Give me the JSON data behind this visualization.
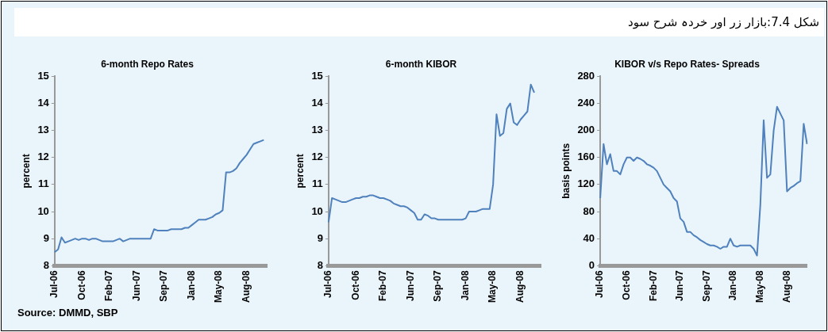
{
  "chart_data": [
    {
      "type": "line",
      "title": "6-month Repo Rates",
      "ylabel": "percent",
      "annotations": [
        "شکل 7.4:بازار زر اور خردہ شرح سود",
        "Source: DMMD, SBP"
      ],
      "categories": [
        "Jul-06",
        null,
        null,
        null,
        null,
        null,
        null,
        null,
        "Oct-06",
        null,
        null,
        null,
        null,
        null,
        null,
        null,
        "Feb-07",
        null,
        null,
        null,
        null,
        null,
        null,
        null,
        "Jun-07",
        null,
        null,
        null,
        null,
        null,
        null,
        null,
        "Sep-07",
        null,
        null,
        null,
        null,
        null,
        null,
        null,
        "Jan-08",
        null,
        null,
        null,
        null,
        null,
        null,
        null,
        "May-08",
        null,
        null,
        null,
        null,
        null,
        null,
        null,
        "Aug-08",
        null,
        null,
        null,
        null,
        null,
        null
      ],
      "series": [
        {
          "color": "#4f81bd",
          "values": [
            8.5,
            8.6,
            9.05,
            8.85,
            8.9,
            8.95,
            9.0,
            8.95,
            9.0,
            9.0,
            8.95,
            9.0,
            9.0,
            8.95,
            8.9,
            8.9,
            8.9,
            8.9,
            8.95,
            9.0,
            8.9,
            8.95,
            9.0,
            9.0,
            9.0,
            9.0,
            9.0,
            9.0,
            9.0,
            9.35,
            9.3,
            9.3,
            9.3,
            9.3,
            9.35,
            9.35,
            9.35,
            9.35,
            9.4,
            9.4,
            9.5,
            9.6,
            9.7,
            9.7,
            9.7,
            9.75,
            9.8,
            9.9,
            9.95,
            10.05,
            11.45,
            11.45,
            11.5,
            11.6,
            11.8,
            11.95,
            12.1,
            12.3,
            12.5,
            12.55,
            12.6,
            12.65,
            null
          ]
        }
      ],
      "ylim": [
        8,
        15
      ],
      "yticks": [
        8,
        9,
        10,
        11,
        12,
        13,
        14,
        15
      ],
      "grid": false,
      "legend": false,
      "marker": "none",
      "line_style": "solid"
    },
    {
      "type": "line",
      "title": "6-month KIBOR",
      "ylabel": "percent",
      "categories": [
        "Jul-06",
        null,
        null,
        null,
        null,
        null,
        null,
        null,
        "Oct-06",
        null,
        null,
        null,
        null,
        null,
        null,
        null,
        "Feb-07",
        null,
        null,
        null,
        null,
        null,
        null,
        null,
        "Jun-07",
        null,
        null,
        null,
        null,
        null,
        null,
        null,
        "Sep-07",
        null,
        null,
        null,
        null,
        null,
        null,
        null,
        "Jan-08",
        null,
        null,
        null,
        null,
        null,
        null,
        null,
        "May-08",
        null,
        null,
        null,
        null,
        null,
        null,
        null,
        "Aug-08",
        null,
        null,
        null,
        null,
        null,
        null
      ],
      "series": [
        {
          "color": "#4f81bd",
          "values": [
            9.6,
            10.5,
            10.45,
            10.4,
            10.35,
            10.35,
            10.4,
            10.45,
            10.5,
            10.5,
            10.55,
            10.55,
            10.6,
            10.6,
            10.55,
            10.5,
            10.5,
            10.45,
            10.4,
            10.3,
            10.25,
            10.2,
            10.2,
            10.15,
            10.05,
            9.95,
            9.7,
            9.7,
            9.9,
            9.85,
            9.75,
            9.75,
            9.7,
            9.7,
            9.7,
            9.7,
            9.7,
            9.7,
            9.7,
            9.7,
            9.75,
            10.0,
            10.0,
            10.0,
            10.05,
            10.1,
            10.1,
            10.1,
            11.0,
            13.6,
            12.8,
            12.9,
            13.8,
            14.0,
            13.3,
            13.2,
            13.4,
            13.55,
            13.7,
            14.7,
            14.4,
            null,
            null
          ]
        }
      ],
      "ylim": [
        8,
        15
      ],
      "yticks": [
        8,
        9,
        10,
        11,
        12,
        13,
        14,
        15
      ],
      "grid": false,
      "legend": false,
      "marker": "none",
      "line_style": "solid"
    },
    {
      "type": "line",
      "title": "KIBOR v/s Repo Rates- Spreads",
      "ylabel": "basis points",
      "categories": [
        "Jul-06",
        null,
        null,
        null,
        null,
        null,
        null,
        null,
        "Oct-06",
        null,
        null,
        null,
        null,
        null,
        null,
        null,
        "Feb-07",
        null,
        null,
        null,
        null,
        null,
        null,
        null,
        "Jun-07",
        null,
        null,
        null,
        null,
        null,
        null,
        null,
        "Sep-07",
        null,
        null,
        null,
        null,
        null,
        null,
        null,
        "Jan-08",
        null,
        null,
        null,
        null,
        null,
        null,
        null,
        "May-08",
        null,
        null,
        null,
        null,
        null,
        null,
        null,
        "Aug-08",
        null,
        null,
        null,
        null,
        null,
        null
      ],
      "series": [
        {
          "color": "#4f81bd",
          "values": [
            100,
            180,
            150,
            165,
            140,
            140,
            135,
            150,
            160,
            160,
            155,
            160,
            158,
            155,
            150,
            148,
            145,
            140,
            130,
            120,
            115,
            110,
            100,
            95,
            70,
            65,
            50,
            50,
            45,
            42,
            38,
            35,
            32,
            30,
            30,
            28,
            25,
            28,
            28,
            40,
            30,
            28,
            30,
            30,
            30,
            30,
            25,
            15,
            90,
            215,
            130,
            135,
            200,
            235,
            225,
            215,
            110,
            115,
            118,
            122,
            125,
            210,
            180
          ]
        }
      ],
      "ylim": [
        0,
        280
      ],
      "yticks": [
        0,
        40,
        80,
        120,
        160,
        200,
        240,
        280
      ],
      "grid": false,
      "legend": false,
      "marker": "none",
      "line_style": "solid"
    }
  ]
}
